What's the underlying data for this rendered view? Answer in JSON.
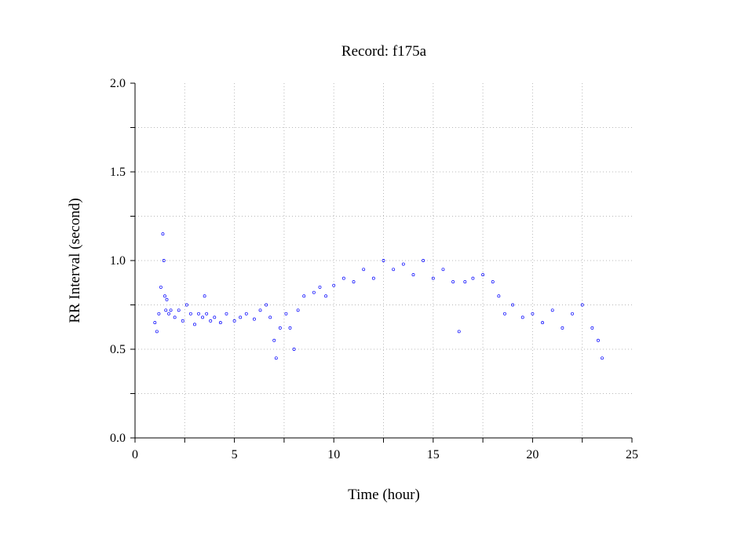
{
  "chart_data": {
    "type": "scatter",
    "title": "Record:  f175a",
    "xlabel": "Time (hour)",
    "ylabel": "RR Interval (second)",
    "xlim": [
      0,
      25
    ],
    "ylim": [
      0,
      2.0
    ],
    "xticks": [
      "0",
      "5",
      "10",
      "15",
      "20",
      "25"
    ],
    "yticks": [
      "0.0",
      "0.5",
      "1.0",
      "1.5",
      "2.0"
    ],
    "grid": true,
    "marker": "open-circle",
    "series_color": "#0000ff",
    "series": [
      {
        "x": [
          1.0,
          1.1,
          1.2,
          1.3,
          1.4,
          1.45,
          1.5,
          1.55,
          1.6,
          1.7,
          1.8,
          2.0,
          2.2,
          2.4,
          2.6,
          2.8,
          3.0,
          3.2,
          3.4,
          3.5,
          3.6,
          3.8,
          4.0,
          4.3,
          4.6,
          5.0,
          5.3,
          5.6,
          6.0,
          6.3,
          6.6,
          6.8,
          7.0,
          7.1,
          7.3,
          7.6,
          7.8,
          8.0,
          8.2,
          8.5,
          9.0,
          9.3,
          9.6,
          10.0,
          10.5,
          11.0,
          11.5,
          12.0,
          12.5,
          13.0,
          13.5,
          14.0,
          14.5,
          15.0,
          15.5,
          16.0,
          16.3,
          16.6,
          17.0,
          17.5,
          18.0,
          18.3,
          18.6,
          19.0,
          19.5,
          20.0,
          20.5,
          21.0,
          21.5,
          22.0,
          22.5,
          23.0,
          23.3,
          23.5
        ],
        "y": [
          0.65,
          0.6,
          0.7,
          0.85,
          1.15,
          1.0,
          0.8,
          0.72,
          0.78,
          0.7,
          0.72,
          0.68,
          0.72,
          0.66,
          0.75,
          0.7,
          0.64,
          0.7,
          0.68,
          0.8,
          0.7,
          0.66,
          0.68,
          0.65,
          0.7,
          0.66,
          0.68,
          0.7,
          0.67,
          0.72,
          0.75,
          0.68,
          0.55,
          0.45,
          0.62,
          0.7,
          0.62,
          0.5,
          0.72,
          0.8,
          0.82,
          0.85,
          0.8,
          0.86,
          0.9,
          0.88,
          0.95,
          0.9,
          1.0,
          0.95,
          0.98,
          0.92,
          1.0,
          0.9,
          0.95,
          0.88,
          0.6,
          0.88,
          0.9,
          0.92,
          0.88,
          0.8,
          0.7,
          0.75,
          0.68,
          0.7,
          0.65,
          0.72,
          0.62,
          0.7,
          0.75,
          0.62,
          0.55,
          0.45
        ]
      }
    ]
  }
}
